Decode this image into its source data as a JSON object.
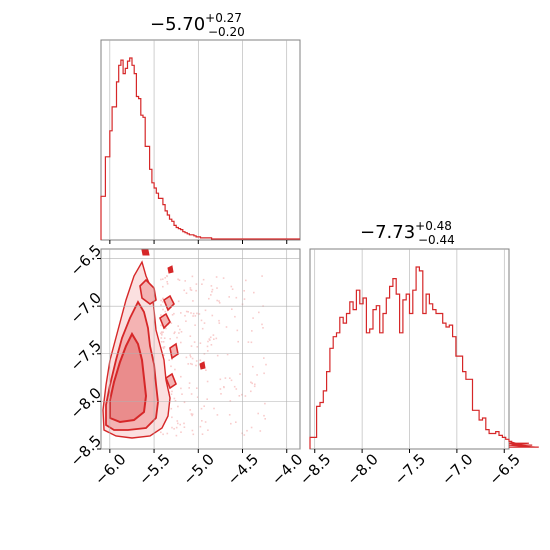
{
  "chart_data": [
    {
      "type": "histogram",
      "panel": "top-left",
      "title": {
        "value": "−5.70",
        "plus": "+0.27",
        "minus": "−0.20"
      },
      "xlim": [
        -6.1,
        -3.85
      ],
      "grid": true,
      "bin_width": 0.025,
      "x_start": -6.1,
      "counts": [
        42,
        42,
        80,
        80,
        105,
        128,
        128,
        152,
        168,
        173,
        160,
        165,
        172,
        175,
        168,
        160,
        138,
        136,
        120,
        118,
        90,
        90,
        68,
        55,
        50,
        45,
        40,
        40,
        34,
        28,
        24,
        20,
        18,
        14,
        12,
        11,
        10,
        8,
        7,
        6,
        5,
        5,
        4,
        3,
        3,
        2,
        2,
        2,
        2,
        2,
        1,
        1,
        1,
        1,
        1,
        1,
        1,
        1,
        1,
        1,
        1,
        1,
        1,
        1,
        1,
        1,
        1,
        1,
        1,
        1,
        1,
        1,
        1,
        1,
        1,
        1,
        1,
        1,
        1,
        1,
        1,
        1,
        1,
        1,
        1,
        1,
        1,
        1,
        1,
        1
      ]
    },
    {
      "type": "contour",
      "panel": "bottom-left",
      "xlim": [
        -6.1,
        -3.85
      ],
      "ylim": [
        -8.5,
        -6.4
      ],
      "grid": true,
      "xticks": [
        "−6.0",
        "−5.5",
        "−5.0",
        "−4.5",
        "−4.0"
      ],
      "yticks": [
        "−6.5",
        "−7.0",
        "−7.5",
        "−8.0",
        "−8.5"
      ],
      "xtick_values": [
        -6.0,
        -5.5,
        -5.0,
        -4.5,
        -4.0
      ],
      "ytick_values": [
        -6.5,
        -7.0,
        -7.5,
        -8.0,
        -8.5
      ]
    },
    {
      "type": "histogram",
      "panel": "bottom-right",
      "title": {
        "value": "−7.73",
        "plus": "+0.48",
        "minus": "−0.44"
      },
      "xlim": [
        -8.55,
        -6.45
      ],
      "grid": true,
      "xticks": [
        "−8.5",
        "−8.0",
        "−7.5",
        "−7.0",
        "−6.5"
      ],
      "xtick_values": [
        -8.5,
        -8.0,
        -7.5,
        -7.0,
        -6.5
      ],
      "bin_width": 0.035,
      "x_start": -8.55,
      "counts": [
        6,
        6,
        22,
        24,
        30,
        40,
        52,
        58,
        60,
        68,
        65,
        70,
        76,
        72,
        82,
        75,
        78,
        60,
        62,
        72,
        74,
        60,
        70,
        78,
        84,
        88,
        80,
        60,
        77,
        80,
        70,
        82,
        94,
        92,
        70,
        80,
        75,
        72,
        70,
        70,
        65,
        63,
        64,
        58,
        48,
        48,
        40,
        36,
        36,
        20,
        20,
        15,
        16,
        10,
        8,
        8,
        9,
        7,
        6,
        5,
        4,
        4,
        3,
        2,
        2,
        2,
        3,
        2,
        1,
        1
      ]
    }
  ],
  "colors": {
    "series": "#d62728",
    "fill": "#f8cccc",
    "grid": "#b0b0b0",
    "frame": "#808080"
  }
}
